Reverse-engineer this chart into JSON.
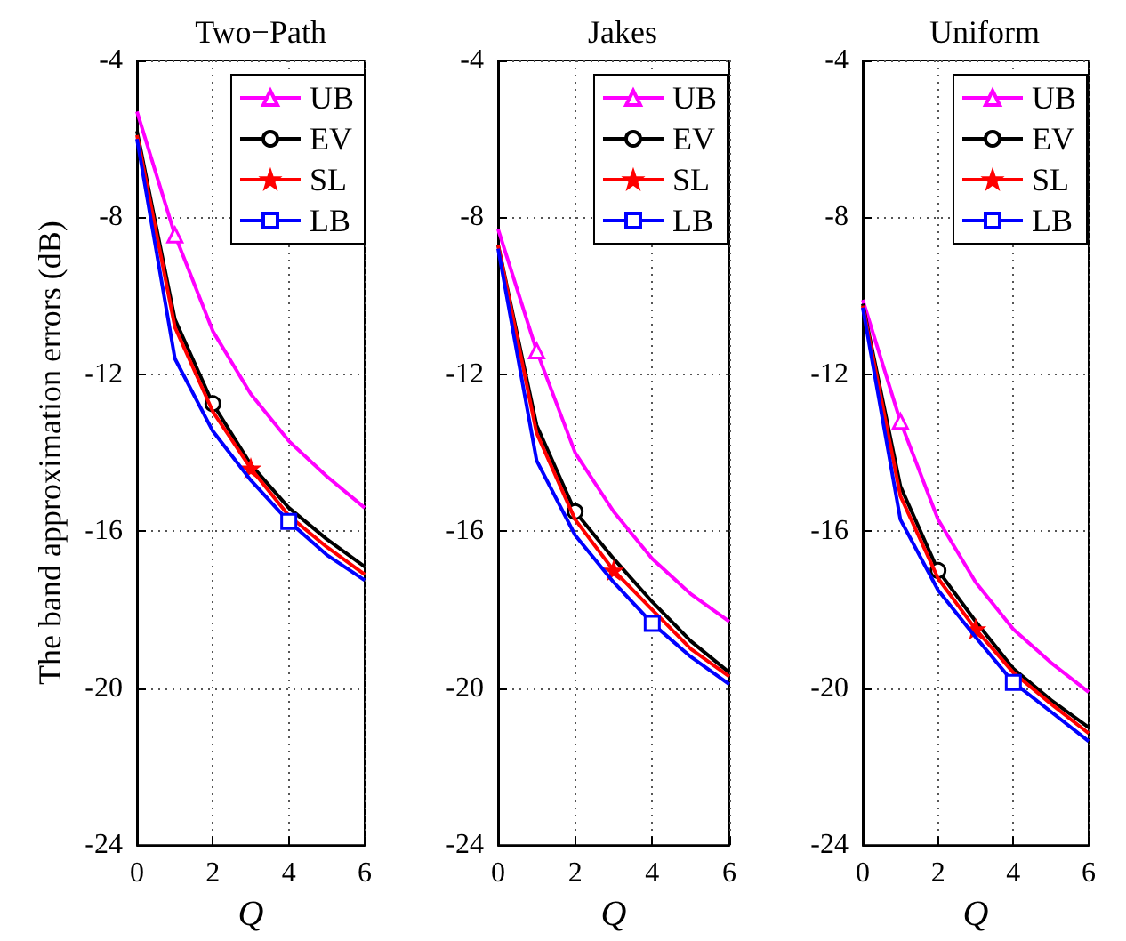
{
  "chart_data": [
    {
      "type": "line",
      "title": "Two−Path",
      "xlabel": "Q",
      "ylabel": "The band approximation errors (dB)",
      "x": [
        0,
        1,
        2,
        3,
        4,
        5,
        6
      ],
      "xlim": [
        0,
        6
      ],
      "xticks": [
        0,
        2,
        4,
        6
      ],
      "ylim": [
        -24,
        -4
      ],
      "yticks": [
        -24,
        -20,
        -16,
        -12,
        -8,
        -4
      ],
      "grid": true,
      "legend": "top right",
      "line_style": "solid",
      "series": [
        {
          "name": "UB",
          "color": "#ff00ff",
          "values": [
            -5.3,
            -8.45,
            -10.9,
            -12.5,
            -13.7,
            -14.6,
            -15.4
          ]
        },
        {
          "name": "EV",
          "color": "#000000",
          "values": [
            -5.8,
            -10.6,
            -12.75,
            -14.3,
            -15.4,
            -16.2,
            -16.9
          ]
        },
        {
          "name": "SL",
          "color": "#ff0000",
          "values": [
            -5.9,
            -10.8,
            -12.95,
            -14.4,
            -15.6,
            -16.4,
            -17.1
          ]
        },
        {
          "name": "LB",
          "color": "#0000ff",
          "values": [
            -6.0,
            -11.6,
            -13.45,
            -14.7,
            -15.75,
            -16.6,
            -17.25
          ]
        }
      ]
    },
    {
      "type": "line",
      "title": "Jakes",
      "xlabel": "Q",
      "x": [
        0,
        1,
        2,
        3,
        4,
        5,
        6
      ],
      "xlim": [
        0,
        6
      ],
      "xticks": [
        0,
        2,
        4,
        6
      ],
      "ylim": [
        -24,
        -4
      ],
      "yticks": [
        -24,
        -20,
        -16,
        -12,
        -8,
        -4
      ],
      "grid": true,
      "legend": "top right",
      "line_style": "solid",
      "series": [
        {
          "name": "UB",
          "color": "#ff00ff",
          "values": [
            -8.3,
            -11.4,
            -14.0,
            -15.5,
            -16.7,
            -17.6,
            -18.3
          ]
        },
        {
          "name": "EV",
          "color": "#000000",
          "values": [
            -8.7,
            -13.3,
            -15.5,
            -16.7,
            -17.8,
            -18.8,
            -19.6
          ]
        },
        {
          "name": "SL",
          "color": "#ff0000",
          "values": [
            -8.7,
            -13.5,
            -15.7,
            -17.0,
            -18.0,
            -19.0,
            -19.7
          ]
        },
        {
          "name": "LB",
          "color": "#0000ff",
          "values": [
            -8.8,
            -14.2,
            -16.1,
            -17.3,
            -18.35,
            -19.2,
            -19.9
          ]
        }
      ]
    },
    {
      "type": "line",
      "title": "Uniform",
      "xlabel": "Q",
      "x": [
        0,
        1,
        2,
        3,
        4,
        5,
        6
      ],
      "xlim": [
        0,
        6
      ],
      "xticks": [
        0,
        2,
        4,
        6
      ],
      "ylim": [
        -24,
        -4
      ],
      "yticks": [
        -24,
        -20,
        -16,
        -12,
        -8,
        -4
      ],
      "grid": true,
      "legend": "top right",
      "line_style": "solid",
      "series": [
        {
          "name": "UB",
          "color": "#ff00ff",
          "values": [
            -10.1,
            -13.2,
            -15.7,
            -17.3,
            -18.5,
            -19.35,
            -20.1
          ]
        },
        {
          "name": "EV",
          "color": "#000000",
          "values": [
            -10.2,
            -14.85,
            -17.0,
            -18.3,
            -19.5,
            -20.3,
            -21.0
          ]
        },
        {
          "name": "SL",
          "color": "#ff0000",
          "values": [
            -10.25,
            -15.1,
            -17.2,
            -18.5,
            -19.6,
            -20.4,
            -21.15
          ]
        },
        {
          "name": "LB",
          "color": "#0000ff",
          "values": [
            -10.3,
            -15.7,
            -17.5,
            -18.7,
            -19.85,
            -20.6,
            -21.35
          ]
        }
      ]
    }
  ]
}
